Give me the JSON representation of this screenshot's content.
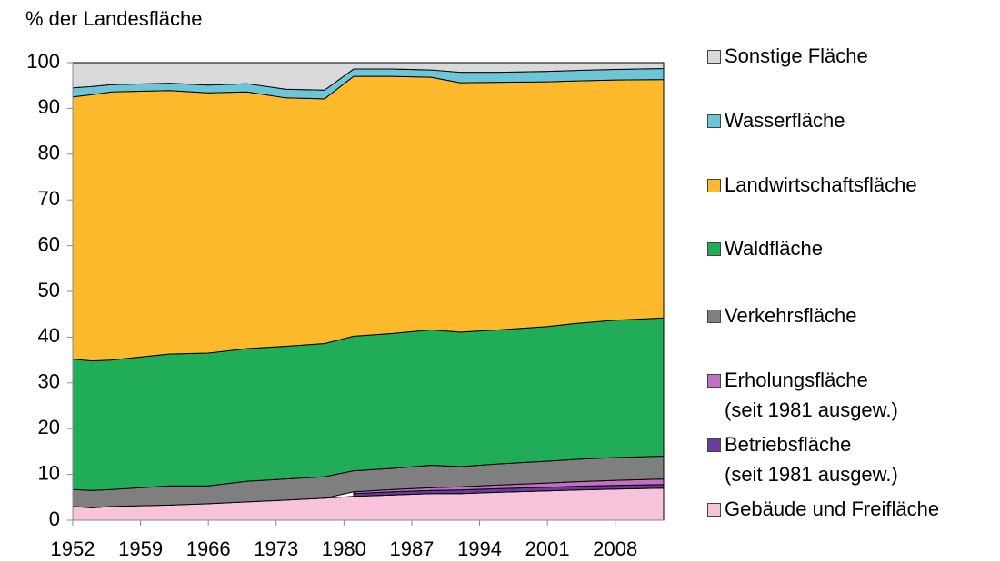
{
  "chart_data": {
    "type": "stacked-area",
    "title": "% der Landesfläche",
    "x": [
      1952,
      1954,
      1956,
      1962,
      1966,
      1970,
      1974,
      1978,
      1981,
      1985,
      1989,
      1992,
      1996,
      2001,
      2004,
      2008,
      2013
    ],
    "xlim": [
      1952,
      2013
    ],
    "xticks": [
      1952,
      1959,
      1966,
      1973,
      1980,
      1987,
      1994,
      2001,
      2008
    ],
    "ylim": [
      0,
      100
    ],
    "yticks": [
      0,
      10,
      20,
      30,
      40,
      50,
      60,
      70,
      80,
      90,
      100
    ],
    "series": [
      {
        "name": "Gebäude und Freifläche",
        "color": "#f6c3da",
        "values": [
          3.0,
          2.7,
          3.0,
          3.3,
          3.6,
          4.0,
          4.4,
          4.8,
          5.2,
          5.5,
          5.8,
          5.8,
          6.1,
          6.4,
          6.6,
          6.8,
          7.0
        ]
      },
      {
        "name": "Betriebsfläche\n(seit 1981 ausgew.)",
        "color": "#6a3d9a",
        "values": [
          null,
          null,
          null,
          null,
          null,
          null,
          null,
          null,
          0.6,
          0.7,
          0.7,
          0.8,
          0.8,
          0.8,
          0.8,
          0.8,
          0.8
        ]
      },
      {
        "name": "Erholungsfläche\n(seit 1981 ausgew.)",
        "color": "#c46fc2",
        "values": [
          null,
          null,
          null,
          null,
          null,
          null,
          null,
          null,
          0.4,
          0.5,
          0.6,
          0.7,
          0.8,
          0.9,
          1.0,
          1.1,
          1.2
        ]
      },
      {
        "name": "Verkehrsfläche",
        "color": "#7f7f7f",
        "values": [
          3.7,
          3.8,
          3.7,
          4.2,
          3.9,
          4.5,
          4.6,
          4.7,
          4.6,
          4.6,
          4.9,
          4.4,
          4.6,
          4.8,
          4.9,
          5.0,
          5.0
        ]
      },
      {
        "name": "Waldfläche",
        "color": "#21ad57",
        "values": [
          28.5,
          28.3,
          28.3,
          28.8,
          29.0,
          29.0,
          29.0,
          29.1,
          29.4,
          29.5,
          29.6,
          29.4,
          29.3,
          29.4,
          29.7,
          30.0,
          30.2
        ]
      },
      {
        "name": "Landwirtschaftsfläche",
        "color": "#fbb92b",
        "values": [
          57.3,
          58.2,
          58.6,
          57.6,
          56.9,
          56.1,
          54.3,
          53.5,
          56.8,
          56.2,
          55.2,
          54.5,
          54.1,
          53.5,
          53.0,
          52.5,
          52.1
        ]
      },
      {
        "name": "Wasserfläche",
        "color": "#6cc6d8",
        "values": [
          2.0,
          1.8,
          1.6,
          1.6,
          1.7,
          1.8,
          1.9,
          1.9,
          1.6,
          1.6,
          1.6,
          2.3,
          2.2,
          2.3,
          2.3,
          2.3,
          2.4
        ]
      },
      {
        "name": "Sonstige Fläche",
        "color": "#d9d9d9",
        "values": [
          5.5,
          5.2,
          4.8,
          4.5,
          4.9,
          4.6,
          5.8,
          6.0,
          1.4,
          1.4,
          1.6,
          2.1,
          2.1,
          1.9,
          1.7,
          1.5,
          1.3
        ]
      }
    ]
  }
}
